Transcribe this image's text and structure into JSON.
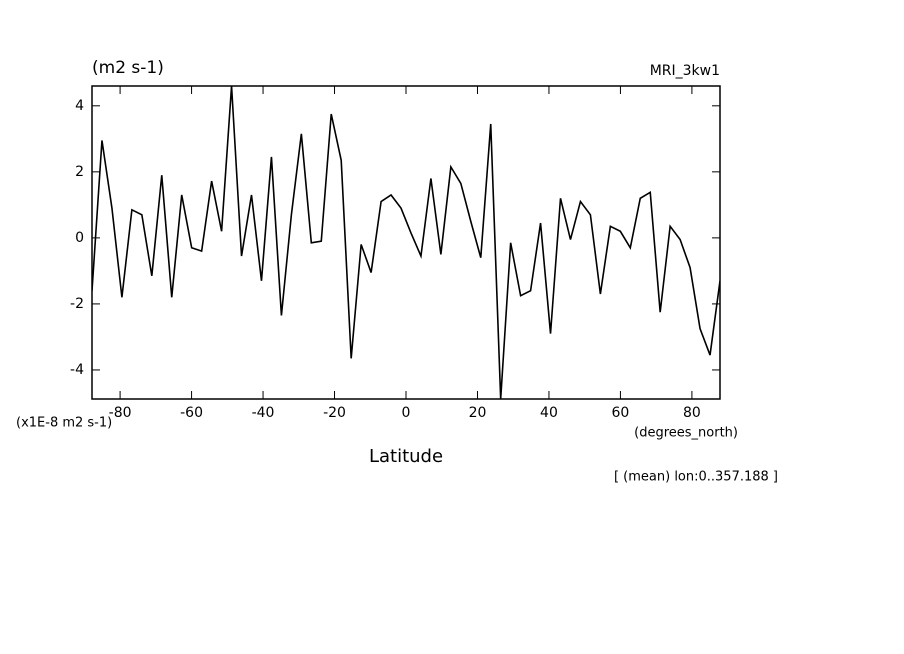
{
  "chart_data": {
    "type": "line",
    "title": "(m2 s-1)",
    "model_label": "MRI_3kw1",
    "y_scale_label": "(x1E-8 m2 s-1)",
    "x_unit_label": "(degrees_north)",
    "xlabel": "Latitude",
    "annotation": "[ (mean) lon:0..357.188 ]",
    "x": [
      -87.86,
      -85.07,
      -82.28,
      -79.49,
      -76.7,
      -73.91,
      -71.12,
      -68.34,
      -65.55,
      -62.76,
      -59.97,
      -57.18,
      -54.39,
      -51.6,
      -48.81,
      -46.02,
      -43.23,
      -40.44,
      -37.65,
      -34.86,
      -32.07,
      -29.28,
      -26.49,
      -23.71,
      -20.92,
      -18.13,
      -15.34,
      -12.55,
      -9.76,
      -6.97,
      -4.18,
      -1.39,
      1.39,
      4.18,
      6.97,
      9.76,
      12.55,
      15.34,
      18.13,
      20.92,
      23.71,
      26.49,
      29.28,
      32.07,
      34.86,
      37.65,
      40.44,
      43.23,
      46.02,
      48.81,
      51.6,
      54.39,
      57.18,
      59.97,
      62.76,
      65.55,
      68.34,
      71.12,
      73.91,
      76.7,
      79.49,
      82.28,
      85.07,
      87.86
    ],
    "series": [
      {
        "color": "#000000",
        "values": [
          -1.6,
          2.95,
          0.9,
          -1.8,
          0.85,
          0.7,
          -1.15,
          1.9,
          -1.8,
          1.3,
          -0.3,
          -0.4,
          1.72,
          0.2,
          4.6,
          -0.55,
          1.3,
          -1.3,
          2.45,
          -2.35,
          0.7,
          3.15,
          -0.15,
          -0.1,
          3.75,
          2.35,
          -3.65,
          -0.2,
          -1.05,
          1.1,
          1.3,
          0.9,
          0.15,
          -0.55,
          1.8,
          -0.5,
          2.15,
          1.65,
          0.5,
          -0.6,
          3.45,
          -4.88,
          -0.15,
          -1.75,
          -1.6,
          0.45,
          -2.9,
          1.2,
          -0.05,
          1.1,
          0.7,
          -1.7,
          0.35,
          0.2,
          -0.3,
          1.2,
          1.38,
          -2.25,
          0.35,
          -0.05,
          -0.9,
          -2.75,
          -3.55,
          -1.3
        ]
      }
    ],
    "xlim": [
      -87.86,
      87.86
    ],
    "xticks": [
      -80,
      -60,
      -40,
      -20,
      0,
      20,
      40,
      60,
      80
    ],
    "ylim": [
      -4.88,
      4.6
    ],
    "yticks": [
      -4,
      -2,
      0,
      2,
      4
    ]
  }
}
